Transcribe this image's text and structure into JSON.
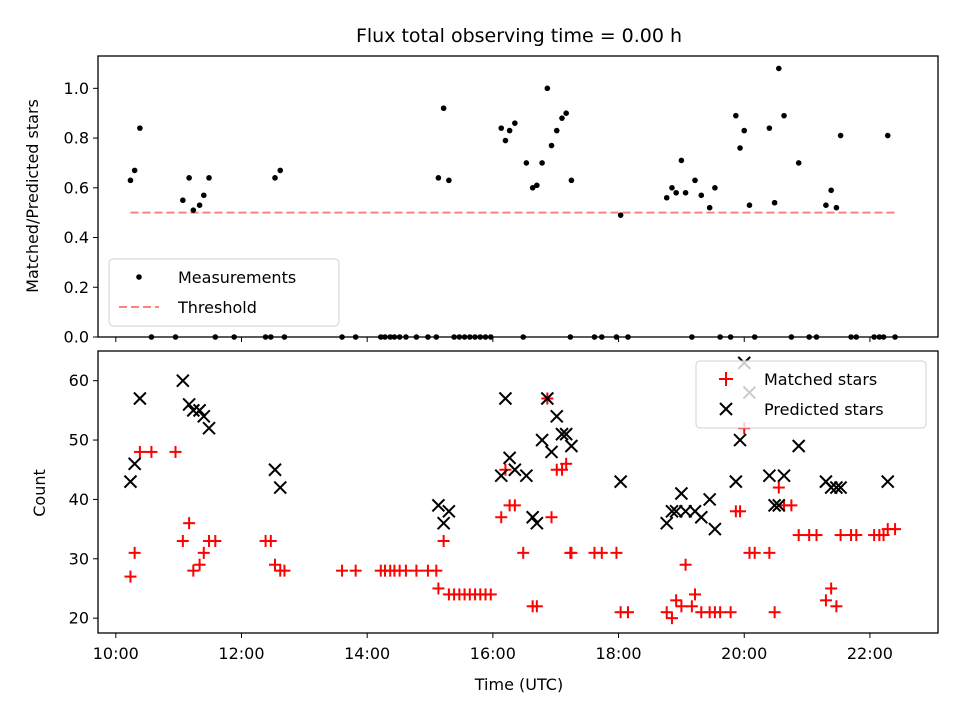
{
  "chart_data": [
    {
      "type": "scatter",
      "title": "Flux total observing time = 0.00 h",
      "xlabel": "",
      "ylabel": "Matched/Predicted stars",
      "xlim": [
        "09:43",
        "23:05"
      ],
      "ylim": [
        0,
        1.13
      ],
      "yticks": [
        "0.0",
        "0.2",
        "0.4",
        "0.6",
        "0.8",
        "1.0"
      ],
      "legend": {
        "placement": "lower-left",
        "entries": [
          "Measurements",
          "Threshold"
        ]
      },
      "threshold": {
        "name": "Threshold",
        "value": 0.5,
        "x_start": "10:14",
        "x_end": "22:24",
        "color": "#ff7f7f"
      },
      "series": [
        {
          "name": "Measurements",
          "color": "#000000",
          "points": [
            [
              "10:14",
              0.63
            ],
            [
              "10:18",
              0.67
            ],
            [
              "10:23",
              0.84
            ],
            [
              "10:34",
              0.0
            ],
            [
              "10:57",
              0.0
            ],
            [
              "11:04",
              0.55
            ],
            [
              "11:10",
              0.64
            ],
            [
              "11:14",
              0.51
            ],
            [
              "11:20",
              0.53
            ],
            [
              "11:24",
              0.57
            ],
            [
              "11:29",
              0.64
            ],
            [
              "11:35",
              0.0
            ],
            [
              "11:53",
              0.0
            ],
            [
              "12:23",
              0.0
            ],
            [
              "12:28",
              0.0
            ],
            [
              "12:32",
              0.64
            ],
            [
              "12:37",
              0.67
            ],
            [
              "12:41",
              0.0
            ],
            [
              "13:36",
              0.0
            ],
            [
              "13:49",
              0.0
            ],
            [
              "14:13",
              0.0
            ],
            [
              "14:17",
              0.0
            ],
            [
              "14:22",
              0.0
            ],
            [
              "14:26",
              0.0
            ],
            [
              "14:31",
              0.0
            ],
            [
              "14:37",
              0.0
            ],
            [
              "14:47",
              0.0
            ],
            [
              "14:58",
              0.0
            ],
            [
              "15:06",
              0.0
            ],
            [
              "15:08",
              0.64
            ],
            [
              "15:13",
              0.92
            ],
            [
              "15:18",
              0.63
            ],
            [
              "15:23",
              0.0
            ],
            [
              "15:28",
              0.0
            ],
            [
              "15:33",
              0.0
            ],
            [
              "15:38",
              0.0
            ],
            [
              "15:43",
              0.0
            ],
            [
              "15:48",
              0.0
            ],
            [
              "15:53",
              0.0
            ],
            [
              "15:58",
              0.0
            ],
            [
              "16:08",
              0.84
            ],
            [
              "16:12",
              0.79
            ],
            [
              "16:16",
              0.83
            ],
            [
              "16:21",
              0.86
            ],
            [
              "16:29",
              0.0
            ],
            [
              "16:32",
              0.7
            ],
            [
              "16:38",
              0.6
            ],
            [
              "16:42",
              0.61
            ],
            [
              "16:47",
              0.7
            ],
            [
              "16:52",
              1.0
            ],
            [
              "16:56",
              0.77
            ],
            [
              "17:01",
              0.83
            ],
            [
              "17:06",
              0.88
            ],
            [
              "17:10",
              0.9
            ],
            [
              "17:14",
              0.0
            ],
            [
              "17:15",
              0.63
            ],
            [
              "17:37",
              0.0
            ],
            [
              "17:44",
              0.0
            ],
            [
              "17:58",
              0.0
            ],
            [
              "18:02",
              0.49
            ],
            [
              "18:09",
              0.0
            ],
            [
              "18:46",
              0.56
            ],
            [
              "18:51",
              0.6
            ],
            [
              "18:55",
              0.58
            ],
            [
              "19:00",
              0.71
            ],
            [
              "19:04",
              0.58
            ],
            [
              "19:10",
              0.0
            ],
            [
              "19:13",
              0.63
            ],
            [
              "19:19",
              0.57
            ],
            [
              "19:27",
              0.52
            ],
            [
              "19:32",
              0.6
            ],
            [
              "19:37",
              0.0
            ],
            [
              "19:47",
              0.0
            ],
            [
              "19:52",
              0.89
            ],
            [
              "19:56",
              0.76
            ],
            [
              "20:00",
              0.83
            ],
            [
              "20:05",
              0.53
            ],
            [
              "20:10",
              0.0
            ],
            [
              "20:24",
              0.84
            ],
            [
              "20:29",
              0.54
            ],
            [
              "20:33",
              1.08
            ],
            [
              "20:38",
              0.89
            ],
            [
              "20:45",
              0.0
            ],
            [
              "20:52",
              0.7
            ],
            [
              "21:02",
              0.0
            ],
            [
              "21:09",
              0.0
            ],
            [
              "21:18",
              0.53
            ],
            [
              "21:23",
              0.59
            ],
            [
              "21:28",
              0.52
            ],
            [
              "21:32",
              0.81
            ],
            [
              "21:42",
              0.0
            ],
            [
              "21:47",
              0.0
            ],
            [
              "22:04",
              0.0
            ],
            [
              "22:09",
              0.0
            ],
            [
              "22:13",
              0.0
            ],
            [
              "22:17",
              0.81
            ],
            [
              "22:24",
              0.0
            ]
          ]
        }
      ]
    },
    {
      "type": "scatter",
      "title": "",
      "xlabel": "Time (UTC)",
      "ylabel": "Count",
      "xlim": [
        "09:43",
        "23:05"
      ],
      "ylim": [
        17.5,
        65
      ],
      "xticks": [
        "10:00",
        "12:00",
        "14:00",
        "16:00",
        "18:00",
        "20:00",
        "22:00"
      ],
      "yticks": [
        "20",
        "30",
        "40",
        "50",
        "60"
      ],
      "legend": {
        "placement": "top-right",
        "entries": [
          "Matched stars",
          "Predicted stars"
        ]
      },
      "series": [
        {
          "name": "Matched stars",
          "marker": "plus",
          "color": "#ff0000",
          "points": [
            [
              "10:14",
              27
            ],
            [
              "10:18",
              31
            ],
            [
              "10:23",
              48
            ],
            [
              "10:34",
              48
            ],
            [
              "10:57",
              48
            ],
            [
              "11:04",
              33
            ],
            [
              "11:10",
              36
            ],
            [
              "11:14",
              28
            ],
            [
              "11:20",
              29
            ],
            [
              "11:24",
              31
            ],
            [
              "11:29",
              33
            ],
            [
              "11:35",
              33
            ],
            [
              "12:23",
              33
            ],
            [
              "12:28",
              33
            ],
            [
              "12:32",
              29
            ],
            [
              "12:37",
              28
            ],
            [
              "12:41",
              28
            ],
            [
              "13:36",
              28
            ],
            [
              "13:49",
              28
            ],
            [
              "14:13",
              28
            ],
            [
              "14:17",
              28
            ],
            [
              "14:22",
              28
            ],
            [
              "14:26",
              28
            ],
            [
              "14:31",
              28
            ],
            [
              "14:37",
              28
            ],
            [
              "14:47",
              28
            ],
            [
              "14:58",
              28
            ],
            [
              "15:06",
              28
            ],
            [
              "15:08",
              25
            ],
            [
              "15:13",
              33
            ],
            [
              "15:18",
              24
            ],
            [
              "15:23",
              24
            ],
            [
              "15:28",
              24
            ],
            [
              "15:33",
              24
            ],
            [
              "15:38",
              24
            ],
            [
              "15:43",
              24
            ],
            [
              "15:48",
              24
            ],
            [
              "15:53",
              24
            ],
            [
              "15:58",
              24
            ],
            [
              "16:08",
              37
            ],
            [
              "16:12",
              45
            ],
            [
              "16:16",
              39
            ],
            [
              "16:21",
              39
            ],
            [
              "16:29",
              31
            ],
            [
              "16:38",
              22
            ],
            [
              "16:42",
              22
            ],
            [
              "16:52",
              57
            ],
            [
              "16:56",
              37
            ],
            [
              "17:01",
              45
            ],
            [
              "17:06",
              45
            ],
            [
              "17:10",
              46
            ],
            [
              "17:14",
              31
            ],
            [
              "17:15",
              31
            ],
            [
              "17:37",
              31
            ],
            [
              "17:44",
              31
            ],
            [
              "17:58",
              31
            ],
            [
              "18:02",
              21
            ],
            [
              "18:09",
              21
            ],
            [
              "18:46",
              21
            ],
            [
              "18:51",
              20
            ],
            [
              "18:55",
              23
            ],
            [
              "19:00",
              22
            ],
            [
              "19:04",
              29
            ],
            [
              "19:10",
              22
            ],
            [
              "19:13",
              24
            ],
            [
              "19:19",
              21
            ],
            [
              "19:27",
              21
            ],
            [
              "19:32",
              21
            ],
            [
              "19:37",
              21
            ],
            [
              "19:47",
              21
            ],
            [
              "19:52",
              38
            ],
            [
              "19:56",
              38
            ],
            [
              "20:00",
              52
            ],
            [
              "20:05",
              31
            ],
            [
              "20:10",
              31
            ],
            [
              "20:24",
              31
            ],
            [
              "20:29",
              21
            ],
            [
              "20:33",
              42
            ],
            [
              "20:38",
              39
            ],
            [
              "20:45",
              39
            ],
            [
              "20:52",
              34
            ],
            [
              "21:02",
              34
            ],
            [
              "21:09",
              34
            ],
            [
              "21:18",
              23
            ],
            [
              "21:23",
              25
            ],
            [
              "21:28",
              22
            ],
            [
              "21:32",
              34
            ],
            [
              "21:42",
              34
            ],
            [
              "21:47",
              34
            ],
            [
              "22:04",
              34
            ],
            [
              "22:09",
              34
            ],
            [
              "22:13",
              34
            ],
            [
              "22:17",
              35
            ],
            [
              "22:24",
              35
            ]
          ]
        },
        {
          "name": "Predicted stars",
          "marker": "x",
          "color": "#000000",
          "points": [
            [
              "10:14",
              43
            ],
            [
              "10:18",
              46
            ],
            [
              "10:23",
              57
            ],
            [
              "11:04",
              60
            ],
            [
              "11:10",
              56
            ],
            [
              "11:14",
              55
            ],
            [
              "11:20",
              55
            ],
            [
              "11:24",
              54
            ],
            [
              "11:29",
              52
            ],
            [
              "12:32",
              45
            ],
            [
              "12:37",
              42
            ],
            [
              "15:08",
              39
            ],
            [
              "15:13",
              36
            ],
            [
              "15:18",
              38
            ],
            [
              "16:08",
              44
            ],
            [
              "16:12",
              57
            ],
            [
              "16:16",
              47
            ],
            [
              "16:21",
              45
            ],
            [
              "16:32",
              44
            ],
            [
              "16:38",
              37
            ],
            [
              "16:42",
              36
            ],
            [
              "16:47",
              50
            ],
            [
              "16:52",
              57
            ],
            [
              "16:56",
              48
            ],
            [
              "17:01",
              54
            ],
            [
              "17:06",
              51
            ],
            [
              "17:10",
              51
            ],
            [
              "17:15",
              49
            ],
            [
              "18:02",
              43
            ],
            [
              "18:46",
              36
            ],
            [
              "18:51",
              38
            ],
            [
              "18:55",
              38
            ],
            [
              "19:00",
              41
            ],
            [
              "19:04",
              38
            ],
            [
              "19:13",
              38
            ],
            [
              "19:19",
              37
            ],
            [
              "19:27",
              40
            ],
            [
              "19:32",
              35
            ],
            [
              "19:52",
              43
            ],
            [
              "19:56",
              50
            ],
            [
              "20:00",
              63
            ],
            [
              "20:05",
              58
            ],
            [
              "20:24",
              44
            ],
            [
              "20:29",
              39
            ],
            [
              "20:33",
              39
            ],
            [
              "20:38",
              44
            ],
            [
              "20:52",
              49
            ],
            [
              "21:18",
              43
            ],
            [
              "21:23",
              42
            ],
            [
              "21:28",
              42
            ],
            [
              "21:32",
              42
            ],
            [
              "22:17",
              43
            ]
          ]
        }
      ]
    }
  ]
}
